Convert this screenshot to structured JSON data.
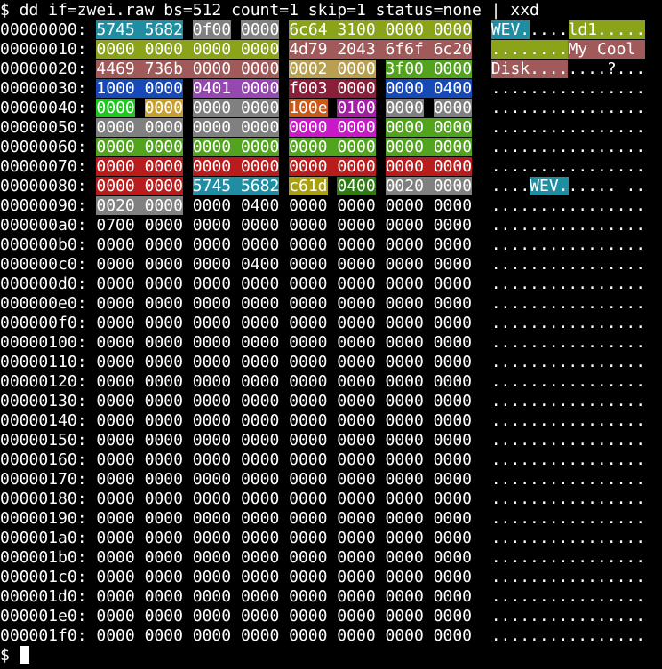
{
  "terminal": {
    "command_line": "$ dd if=zwei.raw bs=512 count=1 skip=1 status=none | xxd",
    "prompt": "$ ",
    "colors": {
      "background": "#000000",
      "foreground": "#ffffff",
      "teal": "#1f8ea3",
      "gray": "#808080",
      "olive": "#8aa319",
      "rose": "#a05a5a",
      "tan": "#b8a050",
      "green": "#52a31d",
      "blue": "#1749b8",
      "purple": "#9448b0",
      "maroon": "#8a1f3a",
      "lime": "#1ec81e",
      "gold": "#c8a030",
      "orange": "#c85a1a",
      "magenta": "#a51fa5",
      "fuchsia": "#c818c8",
      "red": "#b81c1c",
      "yellow": "#a8a010",
      "darkgreen": "#2f7a12"
    },
    "hex_lines": [
      {
        "offset": "00000000:",
        "segments": [
          {
            "t": " "
          },
          {
            "t": "5745 5682",
            "c": "teal"
          },
          {
            "t": " "
          },
          {
            "t": "0f00",
            "c": "gray"
          },
          {
            "t": " "
          },
          {
            "t": "0000",
            "c": "gray"
          },
          {
            "t": " "
          },
          {
            "t": "6c64 3100 0000 0000",
            "c": "olive"
          },
          {
            "t": "  "
          },
          {
            "t": "WEV.",
            "c": "teal"
          },
          {
            "t": "...."
          },
          {
            "t": "ld1.....",
            "c": "olive"
          }
        ]
      },
      {
        "offset": "00000010:",
        "segments": [
          {
            "t": " "
          },
          {
            "t": "0000 0000 0000 0000",
            "c": "olive"
          },
          {
            "t": " "
          },
          {
            "t": "4d79 2043 6f6f 6c20",
            "c": "rose"
          },
          {
            "t": "  "
          },
          {
            "t": "........",
            "c": "olive"
          },
          {
            "t": "My Cool ",
            "c": "rose"
          }
        ]
      },
      {
        "offset": "00000020:",
        "segments": [
          {
            "t": " "
          },
          {
            "t": "4469 736b 0000 0000",
            "c": "rose"
          },
          {
            "t": " "
          },
          {
            "t": "0002 0000",
            "c": "tan"
          },
          {
            "t": " "
          },
          {
            "t": "3f00 0000",
            "c": "green"
          },
          {
            "t": "  "
          },
          {
            "t": "Disk....",
            "c": "rose"
          },
          {
            "t": "....?..."
          }
        ]
      },
      {
        "offset": "00000030:",
        "segments": [
          {
            "t": " "
          },
          {
            "t": "1000 0000",
            "c": "blue"
          },
          {
            "t": " "
          },
          {
            "t": "0401 0000",
            "c": "purple"
          },
          {
            "t": " "
          },
          {
            "t": "f003 0000",
            "c": "maroon"
          },
          {
            "t": " "
          },
          {
            "t": "0000 0400",
            "c": "blue"
          },
          {
            "t": "  "
          },
          {
            "t": "................"
          }
        ]
      },
      {
        "offset": "00000040:",
        "segments": [
          {
            "t": " "
          },
          {
            "t": "0000",
            "c": "lime"
          },
          {
            "t": " "
          },
          {
            "t": "0000",
            "c": "gold"
          },
          {
            "t": " "
          },
          {
            "t": "0000 0000",
            "c": "gray"
          },
          {
            "t": " "
          },
          {
            "t": "100e",
            "c": "orange"
          },
          {
            "t": " "
          },
          {
            "t": "0100",
            "c": "magenta"
          },
          {
            "t": " "
          },
          {
            "t": "0000",
            "c": "gray"
          },
          {
            "t": " "
          },
          {
            "t": "0000",
            "c": "gray"
          },
          {
            "t": "  "
          },
          {
            "t": "................"
          }
        ]
      },
      {
        "offset": "00000050:",
        "segments": [
          {
            "t": " "
          },
          {
            "t": "0000 0000",
            "c": "gray"
          },
          {
            "t": " "
          },
          {
            "t": "0000 0000",
            "c": "gray"
          },
          {
            "t": " "
          },
          {
            "t": "0000 0000",
            "c": "fuchsia"
          },
          {
            "t": " "
          },
          {
            "t": "0000 0000",
            "c": "green"
          },
          {
            "t": "  "
          },
          {
            "t": "................"
          }
        ]
      },
      {
        "offset": "00000060:",
        "segments": [
          {
            "t": " "
          },
          {
            "t": "0000 0000",
            "c": "green"
          },
          {
            "t": " "
          },
          {
            "t": "0000 0000",
            "c": "green"
          },
          {
            "t": " "
          },
          {
            "t": "0000 0000",
            "c": "green"
          },
          {
            "t": " "
          },
          {
            "t": "0000 0000",
            "c": "green"
          },
          {
            "t": "  "
          },
          {
            "t": "................"
          }
        ]
      },
      {
        "offset": "00000070:",
        "segments": [
          {
            "t": " "
          },
          {
            "t": "0000 0000",
            "c": "red"
          },
          {
            "t": " "
          },
          {
            "t": "0000 0000",
            "c": "red"
          },
          {
            "t": " "
          },
          {
            "t": "0000 0000",
            "c": "red"
          },
          {
            "t": " "
          },
          {
            "t": "0000 0000",
            "c": "red"
          },
          {
            "t": "  "
          },
          {
            "t": "................"
          }
        ]
      },
      {
        "offset": "00000080:",
        "segments": [
          {
            "t": " "
          },
          {
            "t": "0000 0000",
            "c": "red"
          },
          {
            "t": " "
          },
          {
            "t": "5745 5682",
            "c": "teal"
          },
          {
            "t": " "
          },
          {
            "t": "c61d",
            "c": "yellow"
          },
          {
            "t": " "
          },
          {
            "t": "0400",
            "c": "darkgreen"
          },
          {
            "t": " "
          },
          {
            "t": "0020 0000",
            "c": "gray"
          },
          {
            "t": "  "
          },
          {
            "t": "...."
          },
          {
            "t": "WEV.",
            "c": "teal"
          },
          {
            "t": "..... .."
          }
        ]
      },
      {
        "offset": "00000090:",
        "segments": [
          {
            "t": " "
          },
          {
            "t": "0020 0000",
            "c": "gray"
          },
          {
            "t": " 0000 0400 0000 0000 0000 0000  ................"
          }
        ]
      },
      {
        "offset": "000000a0:",
        "segments": [
          {
            "t": " 0700 0000 0000 0000 0000 0000 0000 0000  ................"
          }
        ]
      },
      {
        "offset": "000000b0:",
        "segments": [
          {
            "t": " 0000 0000 0000 0000 0000 0000 0000 0000  ................"
          }
        ]
      },
      {
        "offset": "000000c0:",
        "segments": [
          {
            "t": " 0000 0000 0000 0400 0000 0000 0000 0000  ................"
          }
        ]
      },
      {
        "offset": "000000d0:",
        "segments": [
          {
            "t": " 0000 0000 0000 0000 0000 0000 0000 0000  ................"
          }
        ]
      },
      {
        "offset": "000000e0:",
        "segments": [
          {
            "t": " 0000 0000 0000 0000 0000 0000 0000 0000  ................"
          }
        ]
      },
      {
        "offset": "000000f0:",
        "segments": [
          {
            "t": " 0000 0000 0000 0000 0000 0000 0000 0000  ................"
          }
        ]
      },
      {
        "offset": "00000100:",
        "segments": [
          {
            "t": " 0000 0000 0000 0000 0000 0000 0000 0000  ................"
          }
        ]
      },
      {
        "offset": "00000110:",
        "segments": [
          {
            "t": " 0000 0000 0000 0000 0000 0000 0000 0000  ................"
          }
        ]
      },
      {
        "offset": "00000120:",
        "segments": [
          {
            "t": " 0000 0000 0000 0000 0000 0000 0000 0000  ................"
          }
        ]
      },
      {
        "offset": "00000130:",
        "segments": [
          {
            "t": " 0000 0000 0000 0000 0000 0000 0000 0000  ................"
          }
        ]
      },
      {
        "offset": "00000140:",
        "segments": [
          {
            "t": " 0000 0000 0000 0000 0000 0000 0000 0000  ................"
          }
        ]
      },
      {
        "offset": "00000150:",
        "segments": [
          {
            "t": " 0000 0000 0000 0000 0000 0000 0000 0000  ................"
          }
        ]
      },
      {
        "offset": "00000160:",
        "segments": [
          {
            "t": " 0000 0000 0000 0000 0000 0000 0000 0000  ................"
          }
        ]
      },
      {
        "offset": "00000170:",
        "segments": [
          {
            "t": " 0000 0000 0000 0000 0000 0000 0000 0000  ................"
          }
        ]
      },
      {
        "offset": "00000180:",
        "segments": [
          {
            "t": " 0000 0000 0000 0000 0000 0000 0000 0000  ................"
          }
        ]
      },
      {
        "offset": "00000190:",
        "segments": [
          {
            "t": " 0000 0000 0000 0000 0000 0000 0000 0000  ................"
          }
        ]
      },
      {
        "offset": "000001a0:",
        "segments": [
          {
            "t": " 0000 0000 0000 0000 0000 0000 0000 0000  ................"
          }
        ]
      },
      {
        "offset": "000001b0:",
        "segments": [
          {
            "t": " 0000 0000 0000 0000 0000 0000 0000 0000  ................"
          }
        ]
      },
      {
        "offset": "000001c0:",
        "segments": [
          {
            "t": " 0000 0000 0000 0000 0000 0000 0000 0000  ................"
          }
        ]
      },
      {
        "offset": "000001d0:",
        "segments": [
          {
            "t": " 0000 0000 0000 0000 0000 0000 0000 0000  ................"
          }
        ]
      },
      {
        "offset": "000001e0:",
        "segments": [
          {
            "t": " 0000 0000 0000 0000 0000 0000 0000 0000  ................"
          }
        ]
      },
      {
        "offset": "000001f0:",
        "segments": [
          {
            "t": " 0000 0000 0000 0000 0000 0000 0000 0000  ................"
          }
        ]
      }
    ]
  }
}
